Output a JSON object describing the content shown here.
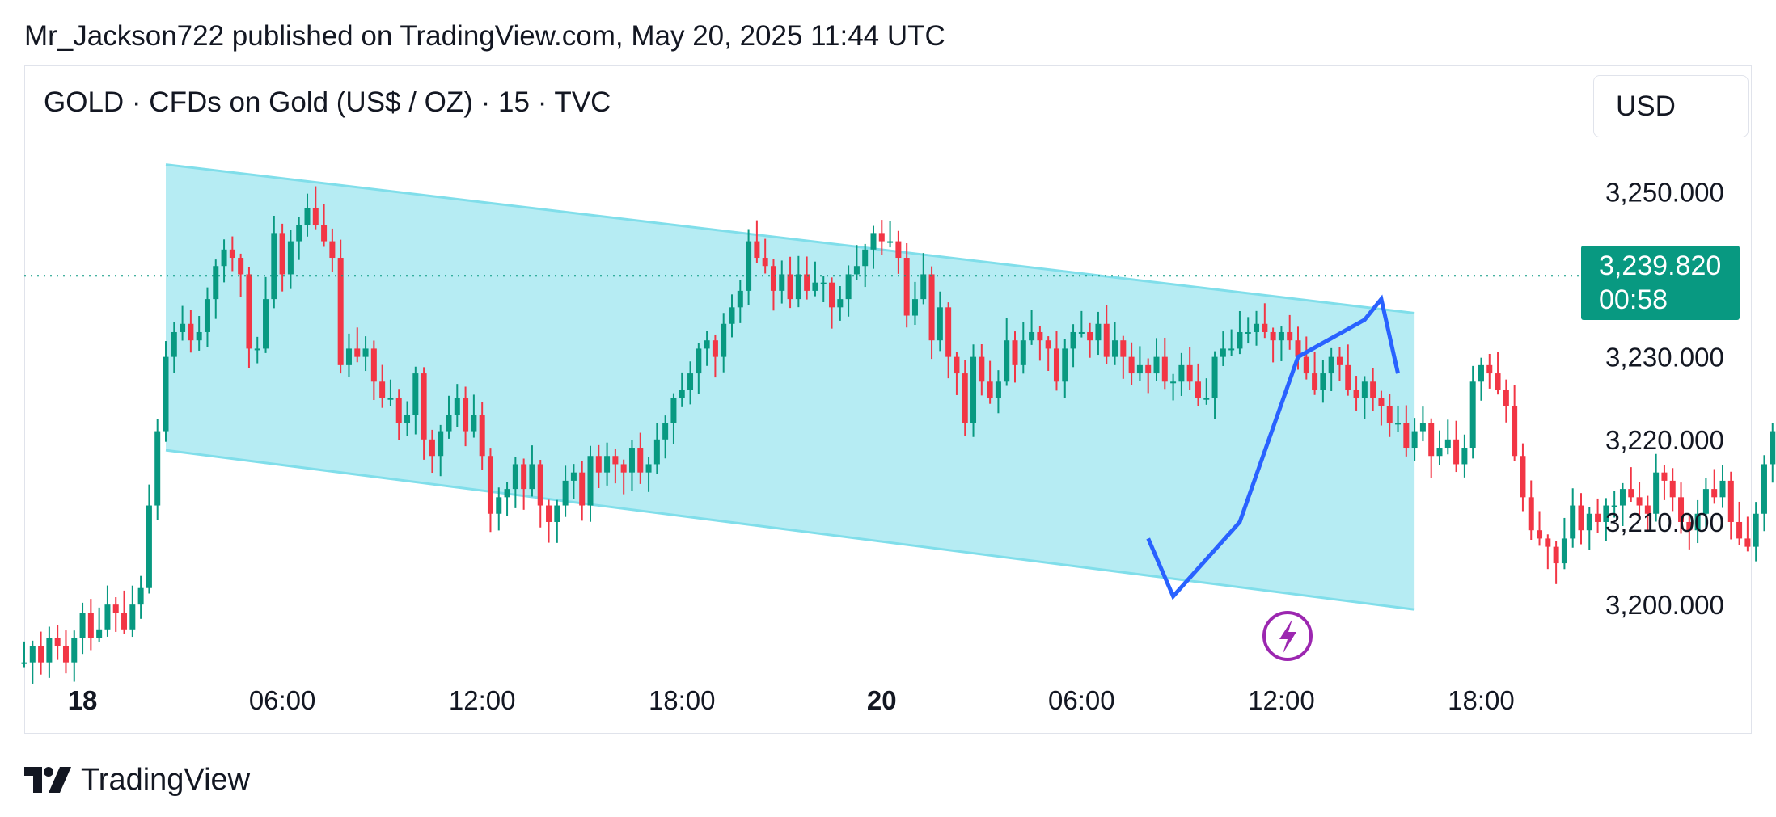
{
  "header": {
    "published_line": "Mr_Jackson722 published on TradingView.com, May 20, 2025 11:44 UTC"
  },
  "symbol_line": "GOLD · CFDs on Gold (US$ / OZ) · 15 · TVC",
  "currency_label": "USD",
  "price_badge": {
    "price": "3,239.820",
    "countdown": "00:58",
    "color": "#089981"
  },
  "footer": {
    "brand": "TradingView",
    "icon": "tradingview-logo-icon"
  },
  "colors": {
    "up": "#089981",
    "down": "#f23645",
    "channel_fill": "#b2ebf2",
    "arrow": "#2962ff",
    "flash": "#9c27b0"
  },
  "chart_data": {
    "type": "candlestick",
    "interval": "15",
    "y_axis": {
      "ticks": [
        3200,
        3210,
        3220,
        3230,
        3250
      ],
      "tick_labels": [
        "3,200.000",
        "3,210.000",
        "3,220.000",
        "3,230.000",
        "3,250.000"
      ],
      "ylim": [
        3191.5,
        3260.5
      ]
    },
    "x_axis": {
      "ticks": [
        "18",
        "06:00",
        "12:00",
        "18:00",
        "20",
        "06:00",
        "12:00",
        "18:00"
      ],
      "bold": [
        true,
        false,
        false,
        false,
        true,
        false,
        false,
        false
      ],
      "tick_hours": [
        0,
        6,
        12,
        18,
        24,
        30,
        36,
        42
      ],
      "xlim_hours": [
        -1.75,
        45
      ]
    },
    "last_price": 3239.82,
    "candles_per_hour": 4,
    "start_hour": -1.75,
    "open_start": 3193.0,
    "closes": [
      3193,
      3195,
      3193,
      3196,
      3195,
      3193,
      3196,
      3199,
      3196,
      3197,
      3200,
      3199,
      3197,
      3200,
      3202,
      3212,
      3221,
      3230,
      3233,
      3234,
      3232,
      3233,
      3237,
      3241,
      3243,
      3242,
      3240,
      3231,
      3231,
      3237,
      3245,
      3240,
      3244,
      3246,
      3248,
      3246,
      3244,
      3242,
      3229,
      3231,
      3230,
      3231,
      3227,
      3225,
      3225,
      3222,
      3223,
      3228,
      3220,
      3218,
      3221,
      3223,
      3225,
      3221,
      3223,
      3218,
      3211,
      3213,
      3214,
      3217,
      3214,
      3217,
      3212,
      3210,
      3212,
      3215,
      3216,
      3212,
      3218,
      3216,
      3218,
      3217,
      3216,
      3219,
      3216,
      3217,
      3220,
      3222,
      3225,
      3226,
      3228,
      3231,
      3232,
      3230,
      3234,
      3236,
      3238,
      3244,
      3242,
      3241,
      3238,
      3240,
      3237,
      3240,
      3238,
      3239,
      3239,
      3236,
      3237,
      3240,
      3241,
      3243,
      3245,
      3244,
      3244,
      3242,
      3235,
      3237,
      3240,
      3232,
      3236,
      3230,
      3228,
      3222,
      3230,
      3227,
      3225,
      3227,
      3232,
      3229,
      3232,
      3233,
      3232,
      3231,
      3227,
      3231,
      3233,
      3233,
      3232,
      3234,
      3230,
      3232,
      3230,
      3228,
      3229,
      3228,
      3230,
      3227,
      3227,
      3229,
      3227,
      3225,
      3225,
      3230,
      3231,
      3231,
      3233,
      3233,
      3234,
      3233,
      3232,
      3233,
      3232,
      3230,
      3228,
      3226,
      3228,
      3230,
      3229,
      3226,
      3225,
      3227,
      3225,
      3224,
      3222,
      3222,
      3219,
      3221,
      3222,
      3218,
      3219,
      3220,
      3217,
      3219,
      3227,
      3229,
      3228,
      3226,
      3224,
      3218,
      3213,
      3209,
      3208,
      3207,
      3205,
      3208,
      3212,
      3209,
      3211,
      3210,
      3212,
      3212,
      3214,
      3213,
      3212,
      3211,
      3216,
      3215,
      3213,
      3210,
      3209,
      3211,
      3214,
      3213,
      3215,
      3210,
      3208,
      3207,
      3211,
      3217,
      3221,
      3222,
      3221,
      3219,
      3223,
      3228,
      3236,
      3236,
      3234,
      3236,
      3235,
      3236,
      3234,
      3235,
      3233,
      3234,
      3237,
      3237,
      3240,
      3239.82
    ],
    "annotations": {
      "channel_upper": {
        "from": [
          2.5,
          3253.3
        ],
        "to": [
          40.0,
          3235.3
        ]
      },
      "channel_lower": {
        "from": [
          2.5,
          3218.7
        ],
        "to": [
          40.0,
          3199.4
        ]
      },
      "arrow_path": [
        [
          32.0,
          3208.0
        ],
        [
          32.75,
          3201.0
        ],
        [
          34.75,
          3210.0
        ],
        [
          36.5,
          3230.0
        ],
        [
          38.5,
          3234.5
        ],
        [
          39.0,
          3237.0
        ],
        [
          39.5,
          3228.0
        ]
      ]
    }
  }
}
